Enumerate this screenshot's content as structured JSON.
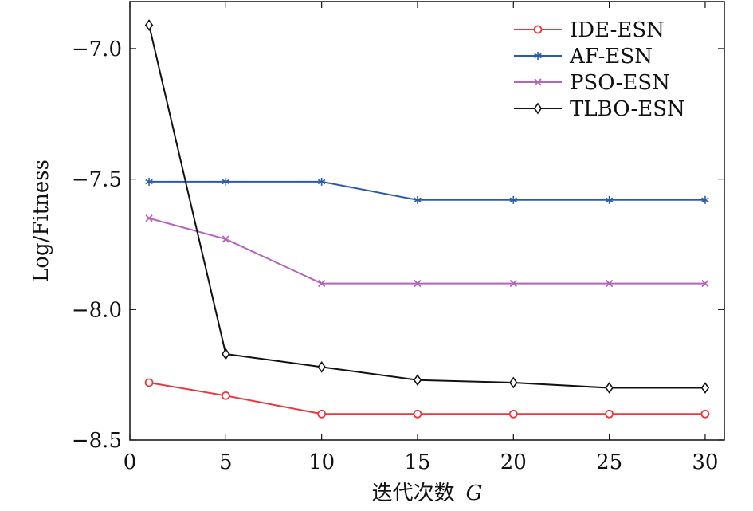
{
  "chart_data": {
    "type": "line",
    "title": "",
    "xlabel": "迭代次数",
    "xlabel_var": "G",
    "ylabel": "Log/Fitness",
    "xlim": [
      0,
      31
    ],
    "ylim": [
      -8.5,
      -6.82
    ],
    "x_ticks": [
      0,
      5,
      10,
      15,
      20,
      25,
      30
    ],
    "x_tick_labels": [
      "0",
      "5",
      "10",
      "15",
      "20",
      "25",
      "30"
    ],
    "y_ticks": [
      -7.0,
      -7.5,
      -8.0,
      -8.5
    ],
    "y_tick_labels": [
      "−7.0",
      "−7.5",
      "−8.0",
      "−8.5"
    ],
    "grid": false,
    "legend_position": "top-right",
    "x": [
      1,
      5,
      10,
      15,
      20,
      25,
      30
    ],
    "series": [
      {
        "name": "IDE-ESN",
        "color": "#e8383d",
        "marker": "circle",
        "values": [
          -8.28,
          -8.33,
          -8.4,
          -8.4,
          -8.4,
          -8.4,
          -8.4
        ]
      },
      {
        "name": "AF-ESN",
        "color": "#2b5ba8",
        "marker": "asterisk",
        "values": [
          -7.51,
          -7.51,
          -7.51,
          -7.58,
          -7.58,
          -7.58,
          -7.58
        ]
      },
      {
        "name": "PSO-ESN",
        "color": "#b366b8",
        "marker": "cross",
        "values": [
          -7.65,
          -7.73,
          -7.9,
          -7.9,
          -7.9,
          -7.9,
          -7.9
        ]
      },
      {
        "name": "TLBO-ESN",
        "color": "#111111",
        "marker": "diamond",
        "values": [
          -6.91,
          -8.17,
          -8.22,
          -8.27,
          -8.28,
          -8.3,
          -8.3
        ]
      }
    ]
  }
}
